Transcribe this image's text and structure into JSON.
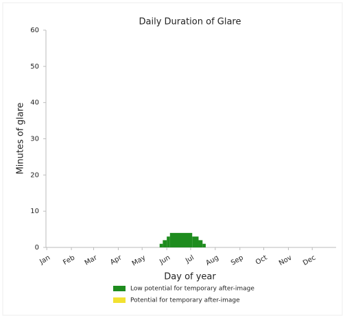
{
  "chart_data": {
    "type": "histogram",
    "title": "Daily Duration of Glare",
    "x_label": "Day of year",
    "y_label": "Minutes of glare",
    "bins": [
      143,
      147,
      152,
      156,
      184,
      192,
      197,
      201
    ],
    "series": [
      {
        "name": "Low potential for temporary after-image",
        "color": "#1e8c1e",
        "values": [
          1,
          2,
          3,
          4,
          3,
          2,
          1
        ]
      },
      {
        "name": "Potential for temporary after-image",
        "color": "#f2e130",
        "values": [
          0,
          0,
          0,
          0,
          0,
          0,
          0
        ]
      }
    ],
    "xlim": [
      0,
      365
    ],
    "xticks": [
      {
        "value": 1,
        "label": "Jan"
      },
      {
        "value": 32,
        "label": "Feb"
      },
      {
        "value": 60,
        "label": "Mar"
      },
      {
        "value": 91,
        "label": "Apr"
      },
      {
        "value": 121,
        "label": "May"
      },
      {
        "value": 152,
        "label": "Jun"
      },
      {
        "value": 182,
        "label": "Jul"
      },
      {
        "value": 213,
        "label": "Aug"
      },
      {
        "value": 244,
        "label": "Sep"
      },
      {
        "value": 274,
        "label": "Oct"
      },
      {
        "value": 305,
        "label": "Nov"
      },
      {
        "value": 335,
        "label": "Dec"
      }
    ],
    "ylim": [
      0,
      60
    ],
    "yticks": [
      0,
      10,
      20,
      30,
      40,
      50,
      60
    ],
    "grid": false
  }
}
